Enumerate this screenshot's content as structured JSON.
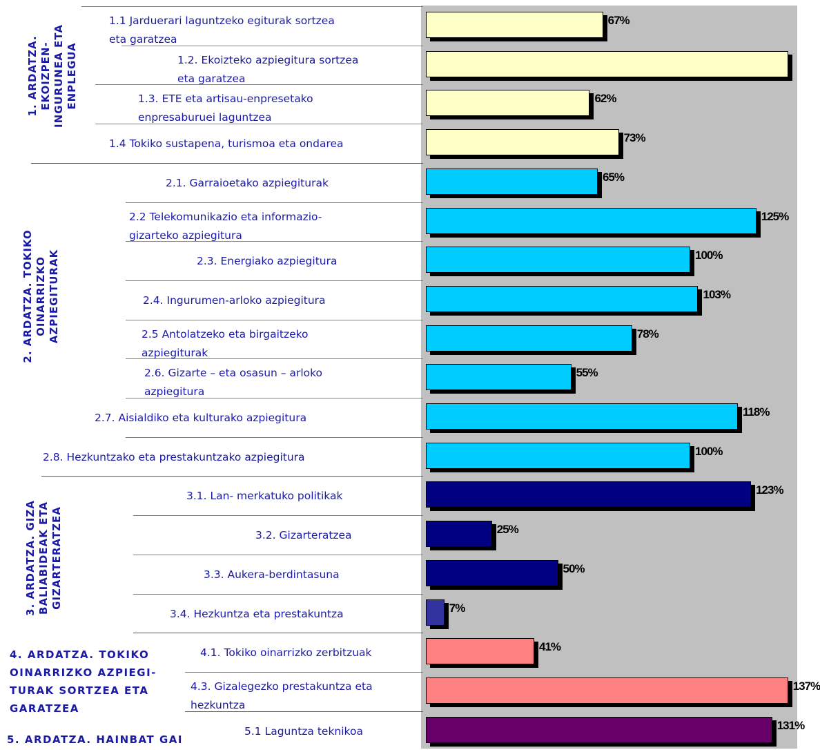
{
  "chart_data": {
    "type": "bar",
    "orientation": "horizontal",
    "title": "",
    "xlabel": "",
    "ylabel": "",
    "xlim": [
      0,
      137
    ],
    "grid": false,
    "legend": "none",
    "colors": {
      "axis1": "#ffffc8",
      "axis2": "#00ccff",
      "axis3": "#000080",
      "axis3_light": "#3333a0",
      "axis4": "#ff8080",
      "axis5": "#660066",
      "plot_bg": "#c0c0c0",
      "text": "#1a1aa6"
    },
    "axes_groups": [
      {
        "id": "axis1",
        "label": "1. ARDATZA. EKOIZPEN-INGURUNEA ETA ENPLEGUA"
      },
      {
        "id": "axis2",
        "label": "2. ARDATZA. TOKIKO OINARRIZKO AZPIEGITURAK"
      },
      {
        "id": "axis3",
        "label": "3. ARDATZA. GIZA BALIABIDEAK ETA GIZARTERATZEA"
      },
      {
        "id": "axis4",
        "label": "4. ARDATZA. TOKIKO OINARRIZKO AZPIEGI- TURAK SORTZEA ETA GARATZEA"
      },
      {
        "id": "axis5",
        "label": "5. ARDATZA. HAINBAT GAI"
      }
    ],
    "categories": [
      {
        "label": "1.1 Jarduerari laguntzeko egiturak sortzea eta garatzea",
        "group": "axis1",
        "value": 67,
        "value_label": "67%"
      },
      {
        "label": "1.2. Ekoizteko azpiegitura sortzea eta garatzea",
        "group": "axis1",
        "value": 137,
        "value_label": ""
      },
      {
        "label": "1.3. ETE eta artisau-enpresetako enpresaburuei laguntzea",
        "group": "axis1",
        "value": 62,
        "value_label": "62%"
      },
      {
        "label": "1.4 Tokiko sustapena, turismoa eta ondarea",
        "group": "axis1",
        "value": 73,
        "value_label": "73%"
      },
      {
        "label": "2.1. Garraioetako azpiegiturak",
        "group": "axis2",
        "value": 65,
        "value_label": "65%"
      },
      {
        "label": "2.2 Telekomunikazio eta informazio-gizarteko azpiegitura",
        "group": "axis2",
        "value": 125,
        "value_label": "125%"
      },
      {
        "label": "2.3. Energiako azpiegitura",
        "group": "axis2",
        "value": 100,
        "value_label": "100%"
      },
      {
        "label": "2.4. Ingurumen-arloko azpiegitura",
        "group": "axis2",
        "value": 103,
        "value_label": "103%"
      },
      {
        "label": "2.5 Antolatzeko eta birgaitzeko azpiegiturak",
        "group": "axis2",
        "value": 78,
        "value_label": "78%"
      },
      {
        "label": "2.6. Gizarte – eta osasun – arloko azpiegitura",
        "group": "axis2",
        "value": 55,
        "value_label": "55%"
      },
      {
        "label": "2.7. Aisialdiko eta kulturako azpiegitura",
        "group": "axis2",
        "value": 118,
        "value_label": "118%"
      },
      {
        "label": "2.8. Hezkuntzako eta prestakuntzako azpiegitura",
        "group": "axis2",
        "value": 100,
        "value_label": "100%"
      },
      {
        "label": "3.1. Lan- merkatuko politikak",
        "group": "axis3",
        "value": 123,
        "value_label": "123%"
      },
      {
        "label": "3.2. Gizarteratzea",
        "group": "axis3",
        "value": 25,
        "value_label": "25%"
      },
      {
        "label": "3.3. Aukera-berdintasuna",
        "group": "axis3",
        "value": 50,
        "value_label": "50%"
      },
      {
        "label": "3.4. Hezkuntza eta prestakuntza",
        "group": "axis3",
        "value": 7,
        "value_label": "7%"
      },
      {
        "label": "4.1. Tokiko oinarrizko zerbitzuak",
        "group": "axis4",
        "value": 41,
        "value_label": "41%"
      },
      {
        "label": "4.3. Gizalegezko prestakuntza eta hezkuntza",
        "group": "axis4",
        "value": 137,
        "value_label": "137%"
      },
      {
        "label": "5.1 Laguntza teknikoa",
        "group": "axis5",
        "value": 131,
        "value_label": "131%"
      }
    ]
  }
}
